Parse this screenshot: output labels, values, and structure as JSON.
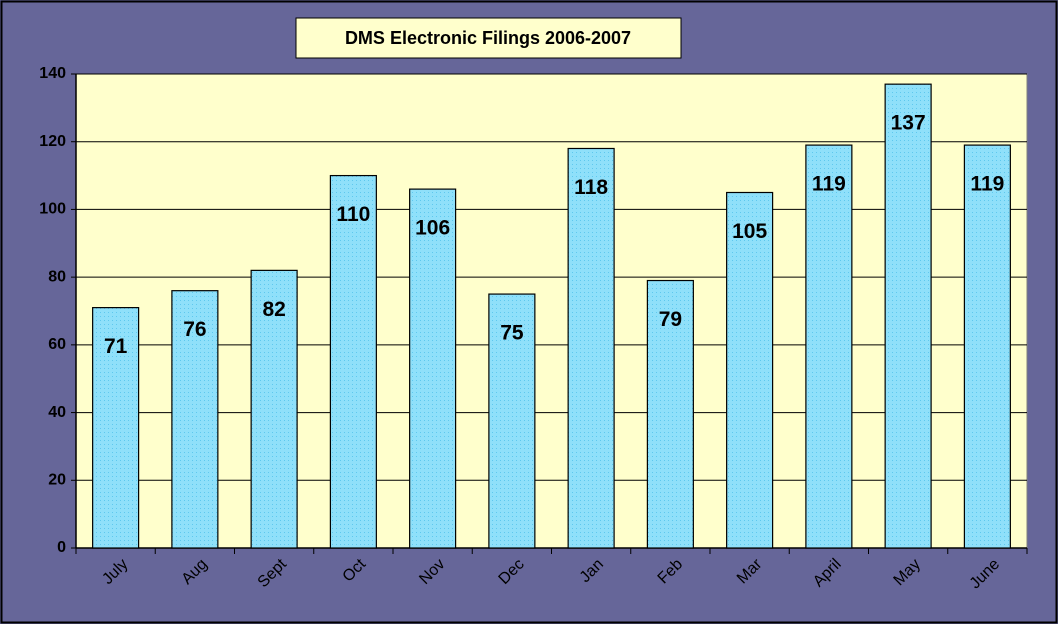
{
  "chart_data": {
    "type": "bar",
    "title": "DMS Electronic Filings 2006-2007",
    "categories": [
      "July",
      "Aug",
      "Sept",
      "Oct",
      "Nov",
      "Dec",
      "Jan",
      "Feb",
      "Mar",
      "April",
      "May",
      "June"
    ],
    "values": [
      71,
      76,
      82,
      110,
      106,
      75,
      118,
      79,
      105,
      119,
      137,
      119
    ],
    "color": "#8fe0fa",
    "ylim": [
      0,
      140
    ],
    "yticks": [
      0,
      20,
      40,
      60,
      80,
      100,
      120,
      140
    ],
    "grid": true
  }
}
